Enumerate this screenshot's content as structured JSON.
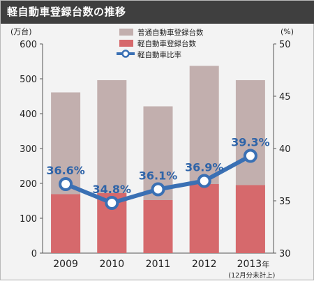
{
  "page": {
    "title": "軽自動車登録台数の推移"
  },
  "colors": {
    "background": "#f3f3f3",
    "title_bar": "#3f3f3f",
    "total_bar": "#c2afae",
    "kei_bar": "#d6696c",
    "ratio_line": "#3a70b4",
    "ratio_text": "#2f64a8"
  },
  "chart_data": {
    "type": "bar",
    "title": "軽自動車登録台数の推移",
    "categories": [
      "2009",
      "2010",
      "2011",
      "2012",
      "2013"
    ],
    "category_suffix": "年",
    "category_note": "(12月分未計上)",
    "left_axis": {
      "unit": "(万台)",
      "ylim": [
        0,
        600
      ],
      "ticks": [
        0,
        100,
        200,
        300,
        400,
        500,
        600
      ]
    },
    "right_axis": {
      "unit": "(%)",
      "ylim": [
        30,
        50
      ],
      "ticks": [
        30,
        35,
        40,
        45,
        50
      ]
    },
    "series": [
      {
        "name": "普通自動車登録台数",
        "type": "bar",
        "axis": "left",
        "values": [
          461,
          496,
          421,
          537,
          496
        ]
      },
      {
        "name": "軽自動車登録台数",
        "type": "bar",
        "axis": "left",
        "values": [
          169,
          172,
          152,
          198,
          195
        ]
      },
      {
        "name": "軽自動車比率",
        "type": "line",
        "axis": "right",
        "values": [
          36.6,
          34.8,
          36.1,
          36.9,
          39.3
        ],
        "labels": [
          "36.6%",
          "34.8%",
          "36.1%",
          "36.9%",
          "39.3%"
        ]
      }
    ],
    "bars_overlap": true,
    "grid": false,
    "legend_position": "top-center"
  }
}
